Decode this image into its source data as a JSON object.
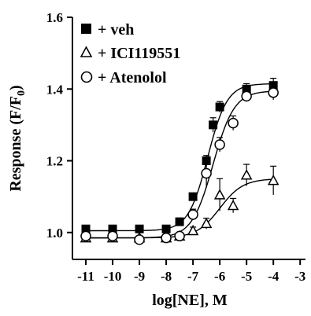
{
  "chart_data": {
    "type": "scatter",
    "xlabel": "log[NE], M",
    "ylabel": "Response (F/F",
    "ylabel_subscript": "0",
    "ylabel_suffix": ")",
    "xlim": [
      -11.5,
      -2.8
    ],
    "ylim": [
      0.925,
      1.6
    ],
    "x_ticks": [
      -11,
      -10,
      -9,
      -8,
      -7,
      -6,
      -5,
      -4,
      -3
    ],
    "x_tick_labels": [
      "-11",
      "-10",
      "-9",
      "-8",
      "-7",
      "-6",
      "-5",
      "-4",
      "-3"
    ],
    "y_ticks": [
      1.0,
      1.2,
      1.4,
      1.6
    ],
    "y_tick_labels": [
      "1.0",
      "1.2",
      "1.4",
      "1.6"
    ],
    "legend_position": "top-left",
    "series": [
      {
        "name": "+ veh",
        "marker": "filled-square",
        "x": [
          -11,
          -10,
          -9,
          -8,
          -7.5,
          -7,
          -6.5,
          -6.25,
          -6,
          -5,
          -4
        ],
        "y": [
          1.01,
          1.01,
          1.01,
          1.01,
          1.03,
          1.1,
          1.2,
          1.3,
          1.35,
          1.4,
          1.41
        ],
        "err": [
          0.005,
          0.005,
          0.005,
          0.005,
          0.01,
          0.01,
          0.015,
          0.02,
          0.015,
          0.015,
          0.02
        ],
        "curve": {
          "bottom": 1.005,
          "top": 1.415,
          "logEC50": -6.45,
          "hill": 1.2
        }
      },
      {
        "name": "+ ICI119551",
        "marker": "open-triangle",
        "x": [
          -11,
          -10,
          -9,
          -8,
          -7.5,
          -7,
          -6.5,
          -6,
          -5.5,
          -5,
          -4
        ],
        "y": [
          0.985,
          0.985,
          0.985,
          0.985,
          0.99,
          1.005,
          1.025,
          1.105,
          1.075,
          1.16,
          1.145
        ],
        "err": [
          0.005,
          0.005,
          0.005,
          0.005,
          0.01,
          0.01,
          0.015,
          0.045,
          0.02,
          0.03,
          0.04
        ],
        "curve": {
          "bottom": 0.985,
          "top": 1.15,
          "logEC50": -6.0,
          "hill": 1.0
        }
      },
      {
        "name": "+ Atenolol",
        "marker": "open-circle",
        "x": [
          -11,
          -10,
          -9,
          -8,
          -7.5,
          -7,
          -6.5,
          -6,
          -5.5,
          -5,
          -4
        ],
        "y": [
          0.99,
          0.99,
          0.98,
          0.985,
          0.99,
          1.05,
          1.165,
          1.245,
          1.305,
          1.38,
          1.39
        ],
        "err": [
          0.005,
          0.005,
          0.005,
          0.005,
          0.01,
          0.015,
          0.04,
          0.02,
          0.02,
          0.015,
          0.02
        ],
        "curve": {
          "bottom": 0.985,
          "top": 1.395,
          "logEC50": -6.25,
          "hill": 1.1
        }
      }
    ]
  }
}
